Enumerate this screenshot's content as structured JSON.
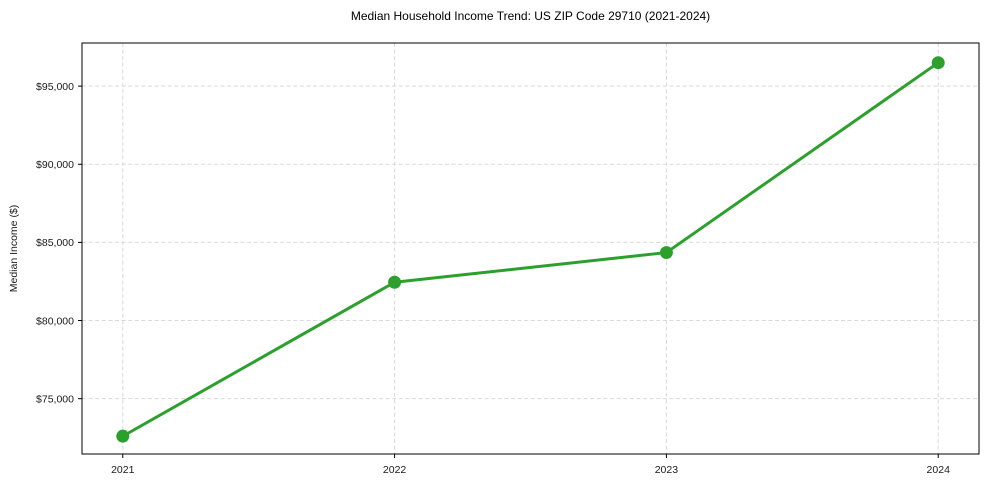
{
  "chart_data": {
    "type": "line",
    "title": "Median Household Income Trend: US ZIP Code 29710 (2021-2024)",
    "xlabel": "",
    "ylabel": "Median Income ($)",
    "categories": [
      "2021",
      "2022",
      "2023",
      "2024"
    ],
    "values": [
      72600,
      82450,
      84350,
      96500
    ],
    "y_ticks": [
      {
        "value": 75000,
        "label": "$75,000"
      },
      {
        "value": 80000,
        "label": "$80,000"
      },
      {
        "value": 85000,
        "label": "$85,000"
      },
      {
        "value": 90000,
        "label": "$90,000"
      },
      {
        "value": 95000,
        "label": "$95,000"
      }
    ],
    "ylim": [
      71460,
      97760
    ],
    "xlim_index": [
      -0.15,
      3.15
    ],
    "grid": {
      "show": true,
      "color": "#d9d9d9",
      "style": "dashed"
    },
    "legend": "none",
    "line_color": "#2ca02c",
    "marker": "circle",
    "axis_color": "#000000",
    "text_color": "#1a1a1a"
  }
}
